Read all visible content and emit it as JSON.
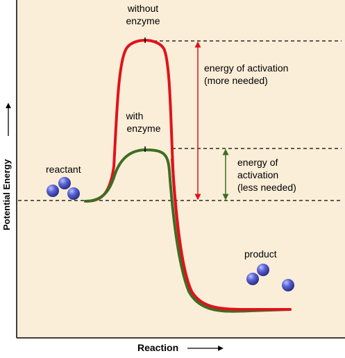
{
  "labels": {
    "without_enzyme_line1": "without",
    "without_enzyme_line2": "enzyme",
    "with_enzyme_line1": "with",
    "with_enzyme_line2": "enzyme",
    "activation_more_line1": "energy of activation",
    "activation_more_line2": "(more needed)",
    "activation_less_line1": "energy of",
    "activation_less_line2": "activation",
    "activation_less_line3": "(less needed)",
    "reactant": "reactant",
    "product": "product"
  },
  "axes": {
    "y_label": "Potential Energy",
    "x_label": "Reaction"
  },
  "colors": {
    "background": "#fbeed8",
    "without_enzyme_curve": "#e0121c",
    "with_enzyme_curve": "#3c6e23",
    "more_needed_arrow": "#e0121c",
    "less_needed_arrow": "#3c6e23",
    "molecule": "#4f57c4",
    "axis": "#000000"
  }
}
